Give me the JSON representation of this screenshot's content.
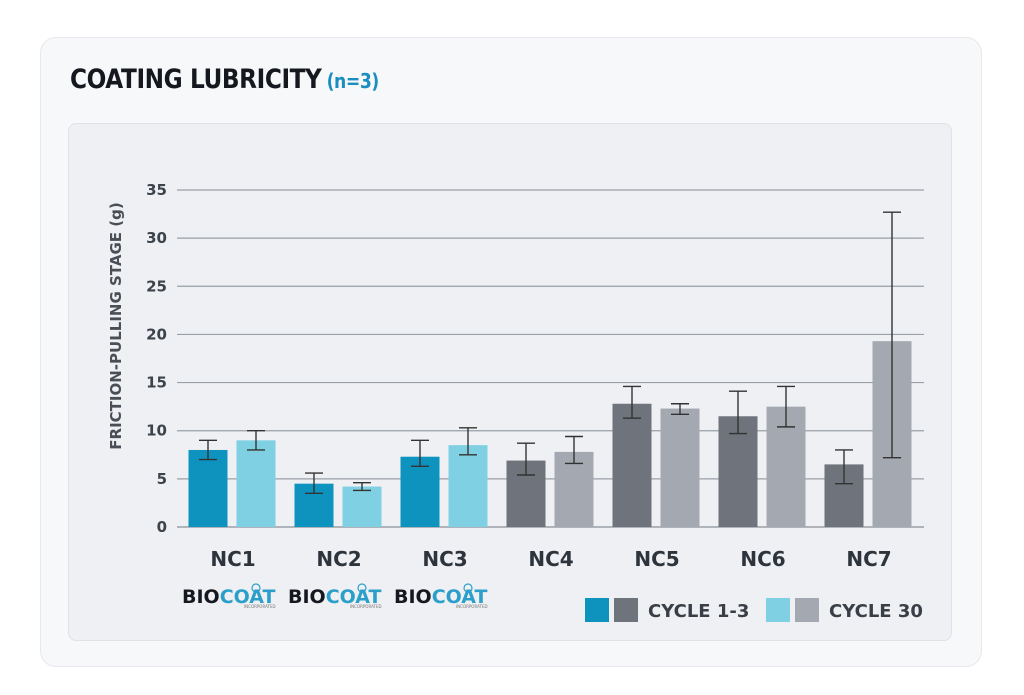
{
  "title": "COATING LUBRICITY",
  "subtitle": "(n=3)",
  "chart_data": {
    "type": "bar",
    "title": "COATING LUBRICITY (n=3)",
    "ylabel": "FRICTION-PULLING STAGE (g)",
    "xlabel": "",
    "ylim": [
      0,
      35
    ],
    "yticks": [
      "0",
      "5",
      "10",
      "15",
      "20",
      "25",
      "30",
      "35"
    ],
    "categories": [
      "NC1",
      "NC2",
      "NC3",
      "NC4",
      "NC5",
      "NC6",
      "NC7"
    ],
    "coated": [
      true,
      true,
      true,
      false,
      false,
      false,
      false
    ],
    "series": [
      {
        "name": "CYCLE 1-3",
        "values": [
          8.0,
          4.5,
          7.3,
          6.9,
          12.8,
          11.5,
          6.5
        ],
        "err_low": [
          7.0,
          3.5,
          6.3,
          5.4,
          11.3,
          9.7,
          4.5
        ],
        "err_high": [
          9.0,
          5.6,
          9.0,
          8.7,
          14.6,
          14.1,
          8.0
        ]
      },
      {
        "name": "CYCLE 30",
        "values": [
          9.0,
          4.2,
          8.5,
          7.8,
          12.3,
          12.5,
          19.3
        ],
        "err_low": [
          8.0,
          3.8,
          7.5,
          6.6,
          11.7,
          10.4,
          7.2
        ],
        "err_high": [
          10.0,
          4.6,
          10.3,
          9.4,
          12.8,
          14.6,
          32.7
        ]
      }
    ],
    "legend": [
      "CYCLE 1-3",
      "CYCLE 30"
    ],
    "logo_text": "BIOCOAT",
    "logo_subtext": "INCORPORATED",
    "grid": true,
    "legend_position": "bottom-right"
  },
  "colors": {
    "coated_1_3": "#0e93bf",
    "coated_30": "#7fd0e3",
    "uncoated_1_3": "#6e737c",
    "uncoated_30": "#a4a8b0",
    "grid": "#9aa0a8",
    "errbar": "#333333"
  }
}
